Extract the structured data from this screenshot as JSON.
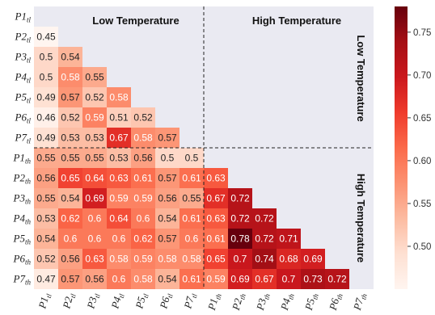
{
  "chart_data": {
    "type": "heatmap",
    "row_labels": [
      {
        "base": "P1",
        "sub": "tl"
      },
      {
        "base": "P2",
        "sub": "tl"
      },
      {
        "base": "P3",
        "sub": "tl"
      },
      {
        "base": "P4",
        "sub": "tl"
      },
      {
        "base": "P5",
        "sub": "tl"
      },
      {
        "base": "P6",
        "sub": "tl"
      },
      {
        "base": "P7",
        "sub": "tl"
      },
      {
        "base": "P1",
        "sub": "th"
      },
      {
        "base": "P2",
        "sub": "th"
      },
      {
        "base": "P3",
        "sub": "th"
      },
      {
        "base": "P4",
        "sub": "th"
      },
      {
        "base": "P5",
        "sub": "th"
      },
      {
        "base": "P6",
        "sub": "th"
      },
      {
        "base": "P7",
        "sub": "th"
      }
    ],
    "col_labels": [
      {
        "base": "P1",
        "sub": "tl"
      },
      {
        "base": "P2",
        "sub": "tl"
      },
      {
        "base": "P3",
        "sub": "tl"
      },
      {
        "base": "P4",
        "sub": "tl"
      },
      {
        "base": "P5",
        "sub": "tl"
      },
      {
        "base": "P6",
        "sub": "tl"
      },
      {
        "base": "P7",
        "sub": "tl"
      },
      {
        "base": "P1",
        "sub": "th"
      },
      {
        "base": "P2",
        "sub": "th"
      },
      {
        "base": "P3",
        "sub": "th"
      },
      {
        "base": "P4",
        "sub": "th"
      },
      {
        "base": "P5",
        "sub": "th"
      },
      {
        "base": "P6",
        "sub": "th"
      },
      {
        "base": "P7",
        "sub": "th"
      }
    ],
    "values": [
      [],
      [
        "0.45"
      ],
      [
        "0.5",
        "0.54"
      ],
      [
        "0.5",
        "0.58",
        "0.55"
      ],
      [
        "0.49",
        "0.57",
        "0.52",
        "0.58"
      ],
      [
        "0.46",
        "0.52",
        "0.59",
        "0.51",
        "0.52"
      ],
      [
        "0.49",
        "0.53",
        "0.53",
        "0.67",
        "0.58",
        "0.57"
      ],
      [
        "0.55",
        "0.55",
        "0.55",
        "0.53",
        "0.56",
        "0.5",
        "0.5"
      ],
      [
        "0.56",
        "0.65",
        "0.64",
        "0.63",
        "0.61",
        "0.57",
        "0.61",
        "0.63"
      ],
      [
        "0.55",
        "0.54",
        "0.69",
        "0.59",
        "0.59",
        "0.56",
        "0.55",
        "0.67",
        "0.72"
      ],
      [
        "0.53",
        "0.62",
        "0.6",
        "0.64",
        "0.6",
        "0.54",
        "0.61",
        "0.63",
        "0.72",
        "0.72"
      ],
      [
        "0.54",
        "0.6",
        "0.6",
        "0.6",
        "0.62",
        "0.57",
        "0.6",
        "0.61",
        "0.78",
        "0.72",
        "0.71"
      ],
      [
        "0.52",
        "0.56",
        "0.63",
        "0.58",
        "0.59",
        "0.58",
        "0.58",
        "0.65",
        "0.7",
        "0.74",
        "0.68",
        "0.69"
      ],
      [
        "0.47",
        "0.57",
        "0.56",
        "0.6",
        "0.58",
        "0.54",
        "0.61",
        "0.59",
        "0.69",
        "0.67",
        "0.7",
        "0.73",
        "0.72"
      ]
    ],
    "colorbar": {
      "min": 0.45,
      "max": 0.78,
      "ticks": [
        "0.50",
        "0.55",
        "0.60",
        "0.65",
        "0.70",
        "0.75"
      ],
      "colors": [
        "#fff5f0",
        "#fee0d2",
        "#fcbba1",
        "#fc9272",
        "#fb6a4a",
        "#ef3b2c",
        "#cb181d",
        "#a50f15",
        "#67000d"
      ]
    },
    "group_labels": {
      "top_left": "Low Temperature",
      "top_right": "High Temperature",
      "right_top": "Low Temperature",
      "right_bottom": "High Temperature"
    },
    "background_color": "#eaeaf2"
  }
}
